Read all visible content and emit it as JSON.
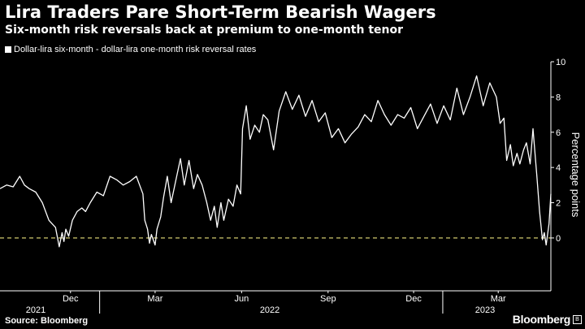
{
  "header": {
    "title": "Lira Traders Pare Short-Term Bearish Wagers",
    "subtitle": "Six-month risk reversals back at premium to one-month tenor"
  },
  "legend": {
    "label": "Dollar-lira six-month - dollar-lira one-month risk reversal rates"
  },
  "footer": {
    "source": "Source: Bloomberg",
    "brand": "Bloomberg"
  },
  "colors": {
    "background": "#000000",
    "line": "#ffffff",
    "zero_line": "#e8e07a",
    "axis": "#ffffff"
  },
  "chart_data": {
    "type": "line",
    "title": "Lira Traders Pare Short-Term Bearish Wagers",
    "subtitle": "Six-month risk reversals back at premium to one-month tenor",
    "ylabel": "Percentage points",
    "ylim": [
      -3,
      10
    ],
    "yticks": [
      0,
      2,
      4,
      6,
      8,
      10
    ],
    "xlim": [
      "2021-09-17",
      "2023-04-26"
    ],
    "x_tick_labels": [
      {
        "date": "2021-12-01",
        "label": "Dec"
      },
      {
        "date": "2022-03-01",
        "label": "Mar"
      },
      {
        "date": "2022-06-01",
        "label": "Jun"
      },
      {
        "date": "2022-09-01",
        "label": "Sep"
      },
      {
        "date": "2022-12-01",
        "label": "Dec"
      },
      {
        "date": "2023-03-01",
        "label": "Mar"
      }
    ],
    "year_labels": [
      {
        "date": "2021-10-25",
        "label": "2021"
      },
      {
        "date": "2022-07-01",
        "label": "2022"
      },
      {
        "date": "2023-02-15",
        "label": "2023"
      }
    ],
    "year_boundaries": [
      "2022-01-01",
      "2023-01-01"
    ],
    "reference_line": {
      "value": 0,
      "style": "dashed"
    },
    "grid": false,
    "series": [
      {
        "name": "Dollar-lira six-month - dollar-lira one-month risk reversal rates",
        "x": [
          "2021-09-17",
          "2021-09-24",
          "2021-10-01",
          "2021-10-08",
          "2021-10-13",
          "2021-10-18",
          "2021-10-25",
          "2021-11-01",
          "2021-11-08",
          "2021-11-15",
          "2021-11-19",
          "2021-11-22",
          "2021-11-24",
          "2021-11-26",
          "2021-11-29",
          "2021-12-03",
          "2021-12-08",
          "2021-12-13",
          "2021-12-17",
          "2021-12-22",
          "2021-12-29",
          "2022-01-05",
          "2022-01-12",
          "2022-01-19",
          "2022-01-26",
          "2022-02-02",
          "2022-02-09",
          "2022-02-16",
          "2022-02-18",
          "2022-02-21",
          "2022-02-23",
          "2022-02-25",
          "2022-03-01",
          "2022-03-03",
          "2022-03-07",
          "2022-03-10",
          "2022-03-14",
          "2022-03-18",
          "2022-03-22",
          "2022-03-28",
          "2022-04-01",
          "2022-04-06",
          "2022-04-11",
          "2022-04-15",
          "2022-04-20",
          "2022-04-25",
          "2022-04-29",
          "2022-05-03",
          "2022-05-06",
          "2022-05-10",
          "2022-05-13",
          "2022-05-18",
          "2022-05-23",
          "2022-05-27",
          "2022-05-31",
          "2022-06-02",
          "2022-06-06",
          "2022-06-10",
          "2022-06-15",
          "2022-06-20",
          "2022-06-24",
          "2022-06-29",
          "2022-07-05",
          "2022-07-11",
          "2022-07-18",
          "2022-07-25",
          "2022-08-01",
          "2022-08-08",
          "2022-08-15",
          "2022-08-22",
          "2022-08-29",
          "2022-09-05",
          "2022-09-12",
          "2022-09-19",
          "2022-09-26",
          "2022-10-03",
          "2022-10-10",
          "2022-10-17",
          "2022-10-24",
          "2022-10-31",
          "2022-11-07",
          "2022-11-14",
          "2022-11-21",
          "2022-11-28",
          "2022-12-05",
          "2022-12-12",
          "2022-12-19",
          "2022-12-26",
          "2023-01-02",
          "2023-01-09",
          "2023-01-16",
          "2023-01-23",
          "2023-01-30",
          "2023-02-06",
          "2023-02-13",
          "2023-02-20",
          "2023-02-27",
          "2023-03-03",
          "2023-03-07",
          "2023-03-10",
          "2023-03-14",
          "2023-03-17",
          "2023-03-21",
          "2023-03-24",
          "2023-03-28",
          "2023-03-31",
          "2023-04-04",
          "2023-04-07",
          "2023-04-11",
          "2023-04-14",
          "2023-04-17",
          "2023-04-19",
          "2023-04-21",
          "2023-04-24",
          "2023-04-26"
        ],
        "values": [
          2.8,
          3.0,
          2.9,
          3.5,
          3.0,
          2.8,
          2.6,
          2.0,
          1.0,
          0.6,
          -0.5,
          0.3,
          -0.2,
          0.5,
          0.1,
          1.0,
          1.5,
          1.7,
          1.5,
          2.0,
          2.6,
          2.4,
          3.5,
          3.3,
          3.0,
          3.2,
          3.5,
          2.5,
          1.0,
          0.5,
          -0.3,
          0.2,
          -0.4,
          0.5,
          1.2,
          2.3,
          3.5,
          2.0,
          3.0,
          4.5,
          3.0,
          4.4,
          2.8,
          3.6,
          3.0,
          2.0,
          1.0,
          1.8,
          0.6,
          2.0,
          1.0,
          2.2,
          1.8,
          3.0,
          2.5,
          6.2,
          7.5,
          5.6,
          6.4,
          6.0,
          7.0,
          6.7,
          5.0,
          7.2,
          8.3,
          7.3,
          8.1,
          6.9,
          7.8,
          6.6,
          7.1,
          5.7,
          6.2,
          5.4,
          5.9,
          6.3,
          7.0,
          6.6,
          7.8,
          7.0,
          6.4,
          7.0,
          6.8,
          7.4,
          6.2,
          6.9,
          7.6,
          6.5,
          7.5,
          6.7,
          8.5,
          7.0,
          8.0,
          9.2,
          7.5,
          8.8,
          8.0,
          6.5,
          6.8,
          4.4,
          5.3,
          4.1,
          4.8,
          4.2,
          5.0,
          5.4,
          4.2,
          6.2,
          3.6,
          1.5,
          -0.1,
          0.3,
          -0.4,
          0.8,
          2.5
        ]
      }
    ]
  }
}
